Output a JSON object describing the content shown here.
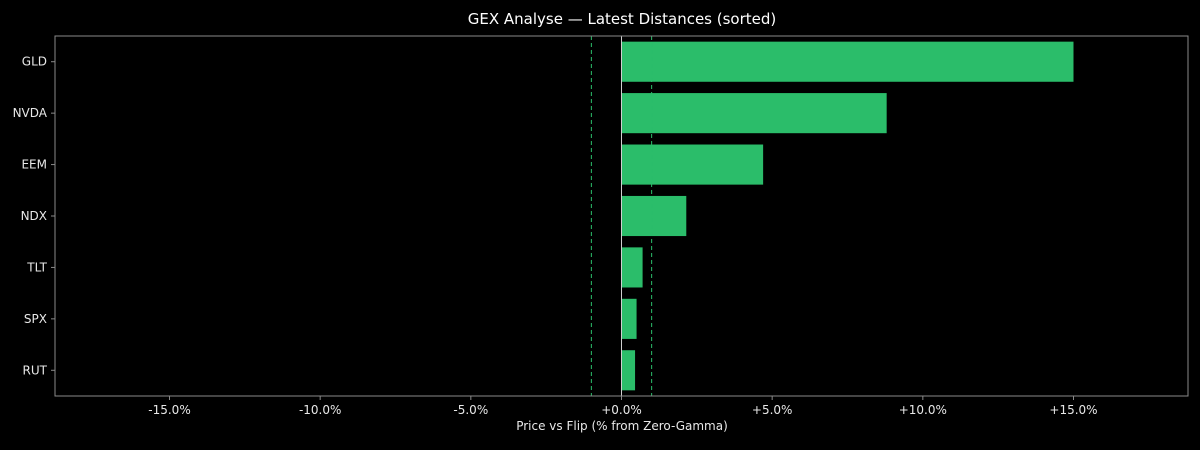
{
  "chart_data": {
    "type": "bar",
    "orientation": "horizontal",
    "title": "GEX Analyse — Latest Distances (sorted)",
    "xlabel": "Price vs Flip (% from Zero-Gamma)",
    "ylabel": "",
    "categories": [
      "GLD",
      "NVDA",
      "EEM",
      "NDX",
      "TLT",
      "SPX",
      "RUT"
    ],
    "values": [
      15.0,
      8.8,
      4.7,
      2.15,
      0.7,
      0.5,
      0.45
    ],
    "xlim": [
      -18.8,
      18.8
    ],
    "xticks": [
      -15,
      -10,
      -5,
      0,
      5,
      10,
      15
    ],
    "xtick_labels": [
      "-15.0%",
      "-10.0%",
      "-5.0%",
      "+0.0%",
      "+5.0%",
      "+10.0%",
      "+15.0%"
    ],
    "reference_lines": [
      {
        "x": -1.0,
        "style": "dashed"
      },
      {
        "x": 1.0,
        "style": "dashed"
      },
      {
        "x": 0.0,
        "style": "solid"
      }
    ],
    "grid": false,
    "legend": "none"
  },
  "colors": {
    "background": "#000000",
    "bar": "#2bbd6a",
    "reference_dashed": "#2bbd6a",
    "zero_line": "#d0d0d0",
    "axis_frame": "#8a8a8a",
    "text": "#e8e8e8"
  }
}
